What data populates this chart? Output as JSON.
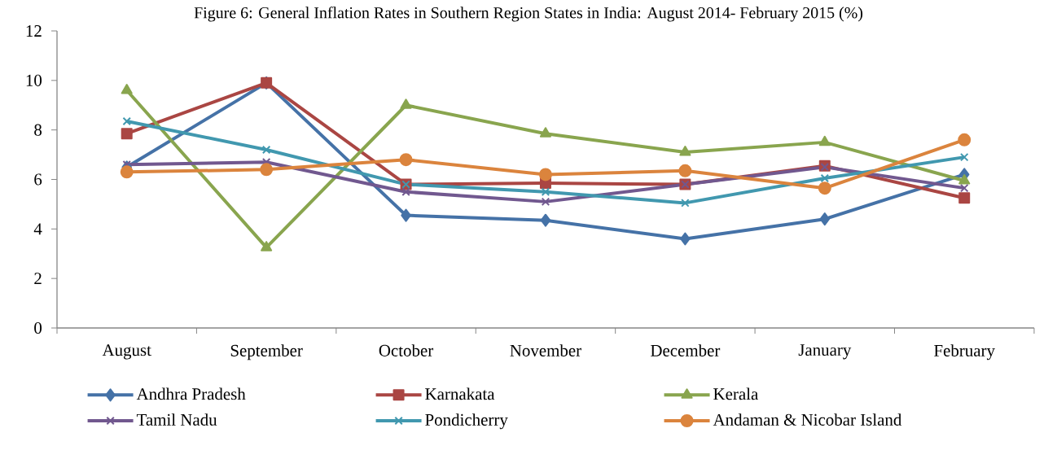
{
  "chart_data": {
    "type": "line",
    "title": "Figure 6: General Inflation Rates in Southern Region States in India: August 2014- February 2015 (%)",
    "categories": [
      "August",
      "September",
      "October",
      "November",
      "December",
      "January",
      "February"
    ],
    "series": [
      {
        "name": "Andhra Pradesh",
        "color": "#4572a7",
        "marker": "diamond",
        "values": [
          6.5,
          9.9,
          4.55,
          4.35,
          3.6,
          4.4,
          6.2
        ]
      },
      {
        "name": "Karnakata",
        "color": "#aa4643",
        "marker": "square",
        "values": [
          7.85,
          9.9,
          5.8,
          5.85,
          5.8,
          6.55,
          5.25
        ]
      },
      {
        "name": "Kerala",
        "color": "#89a54e",
        "marker": "triangle",
        "values": [
          9.6,
          3.25,
          9.0,
          7.85,
          7.1,
          7.5,
          5.95
        ]
      },
      {
        "name": "Tamil Nadu",
        "color": "#71588f",
        "marker": "cross",
        "values": [
          6.6,
          6.7,
          5.5,
          5.1,
          5.8,
          6.5,
          5.65
        ]
      },
      {
        "name": "Pondicherry",
        "color": "#4198af",
        "marker": "cross",
        "values": [
          8.35,
          7.2,
          5.8,
          5.5,
          5.05,
          6.05,
          6.9
        ]
      },
      {
        "name": "Andaman & Nicobar Island",
        "color": "#db843d",
        "marker": "circle",
        "values": [
          6.3,
          6.4,
          6.8,
          6.2,
          6.35,
          5.65,
          7.6
        ]
      }
    ],
    "ylim": [
      0,
      12
    ],
    "yticks": [
      0,
      2,
      4,
      6,
      8,
      10,
      12
    ],
    "grid": false,
    "legend": "bottom"
  }
}
